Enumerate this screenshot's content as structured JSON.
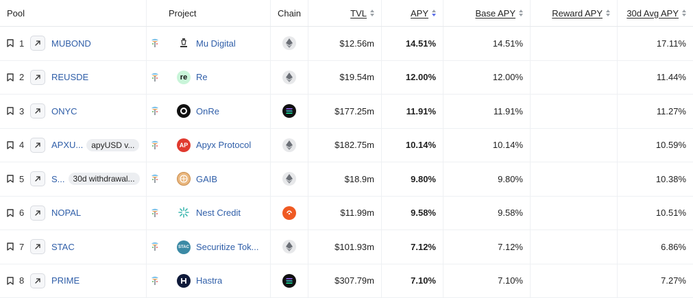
{
  "headers": {
    "pool": "Pool",
    "project": "Project",
    "chain": "Chain",
    "tvl": "TVL",
    "apy": "APY",
    "base_apy": "Base APY",
    "reward_apy": "Reward APY",
    "avg_apy": "30d Avg APY"
  },
  "rows": [
    {
      "rank": "1",
      "pool": "MUBOND",
      "tag": "",
      "project": "Mu Digital",
      "project_icon": "mu-digital-icon",
      "chain": "ethereum",
      "tvl": "$12.56m",
      "apy": "14.51%",
      "base_apy": "14.51%",
      "reward_apy": "",
      "avg_apy": "17.11%"
    },
    {
      "rank": "2",
      "pool": "REUSDE",
      "tag": "",
      "project": "Re",
      "project_icon": "re-icon",
      "chain": "ethereum",
      "tvl": "$19.54m",
      "apy": "12.00%",
      "base_apy": "12.00%",
      "reward_apy": "",
      "avg_apy": "11.44%"
    },
    {
      "rank": "3",
      "pool": "ONYC",
      "tag": "",
      "project": "OnRe",
      "project_icon": "onre-icon",
      "chain": "solana",
      "tvl": "$177.25m",
      "apy": "11.91%",
      "base_apy": "11.91%",
      "reward_apy": "",
      "avg_apy": "11.27%"
    },
    {
      "rank": "4",
      "pool": "APXU...",
      "tag": "apyUSD v...",
      "project": "Apyx Protocol",
      "project_icon": "apyx-icon",
      "chain": "ethereum",
      "tvl": "$182.75m",
      "apy": "10.14%",
      "base_apy": "10.14%",
      "reward_apy": "",
      "avg_apy": "10.59%"
    },
    {
      "rank": "5",
      "pool": "S...",
      "tag": "30d withdrawal...",
      "project": "GAIB",
      "project_icon": "gaib-icon",
      "chain": "ethereum",
      "tvl": "$18.9m",
      "apy": "9.80%",
      "base_apy": "9.80%",
      "reward_apy": "",
      "avg_apy": "10.38%"
    },
    {
      "rank": "6",
      "pool": "NOPAL",
      "tag": "",
      "project": "Nest Credit",
      "project_icon": "nest-credit-icon",
      "chain": "plume",
      "tvl": "$11.99m",
      "apy": "9.58%",
      "base_apy": "9.58%",
      "reward_apy": "",
      "avg_apy": "10.51%"
    },
    {
      "rank": "7",
      "pool": "STAC",
      "tag": "",
      "project": "Securitize Tok...",
      "project_icon": "securitize-icon",
      "chain": "ethereum",
      "tvl": "$101.93m",
      "apy": "7.12%",
      "base_apy": "7.12%",
      "reward_apy": "",
      "avg_apy": "6.86%"
    },
    {
      "rank": "8",
      "pool": "PRIME",
      "tag": "",
      "project": "Hastra",
      "project_icon": "hastra-icon",
      "chain": "solana",
      "tvl": "$307.79m",
      "apy": "7.10%",
      "base_apy": "7.10%",
      "reward_apy": "",
      "avg_apy": "7.27%"
    }
  ],
  "colors": {
    "link": "#2f5ea8",
    "sort_active": "#5b6ee8",
    "border": "#eef0f3"
  }
}
